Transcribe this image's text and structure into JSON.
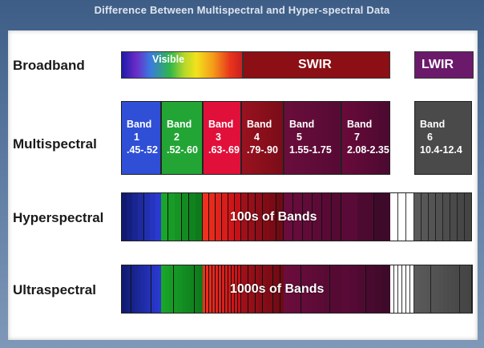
{
  "title": "Difference Between Multispectral and Hyper-spectral Data",
  "rows": {
    "broadband": "Broadband",
    "multispectral": "Multispectral",
    "hyperspectral": "Hyperspectral",
    "ultraspectral": "Ultraspectral"
  },
  "broadband": {
    "visible": "Visible",
    "swir": "SWIR",
    "lwir": "LWIR"
  },
  "bands": [
    {
      "label": "Band",
      "num": "1",
      "range": ".45-.52",
      "color": "#2f4fd6"
    },
    {
      "label": "Band",
      "num": "2",
      "range": ".52-.60",
      "color": "#22a535"
    },
    {
      "label": "Band",
      "num": "3",
      "range": ".63-.69",
      "color": "#e0103a"
    },
    {
      "label": "Band",
      "num": "4",
      "range": ".79-.90",
      "color": "#8e0f1a"
    },
    {
      "label": "Band",
      "num": "5",
      "range": "1.55-1.75",
      "color": "#6b0d3c"
    },
    {
      "label": "Band",
      "num": "7",
      "range": "2.08-2.35",
      "color": "#6a0a3a"
    },
    {
      "label": "Band",
      "num": "6",
      "range": "10.4-12.4",
      "color": "#4a4a4a"
    }
  ],
  "hyperspectral_label": "100s of Bands",
  "ultraspectral_label": "1000s of Bands",
  "colors": {
    "blue": "#1a2aa8",
    "green": "#1f9a2a",
    "red": "#e8262a",
    "maroon": "#7a0c18",
    "purple": "#5c0a3e",
    "gray": "#555555",
    "lwir": "#6a1a6a"
  }
}
